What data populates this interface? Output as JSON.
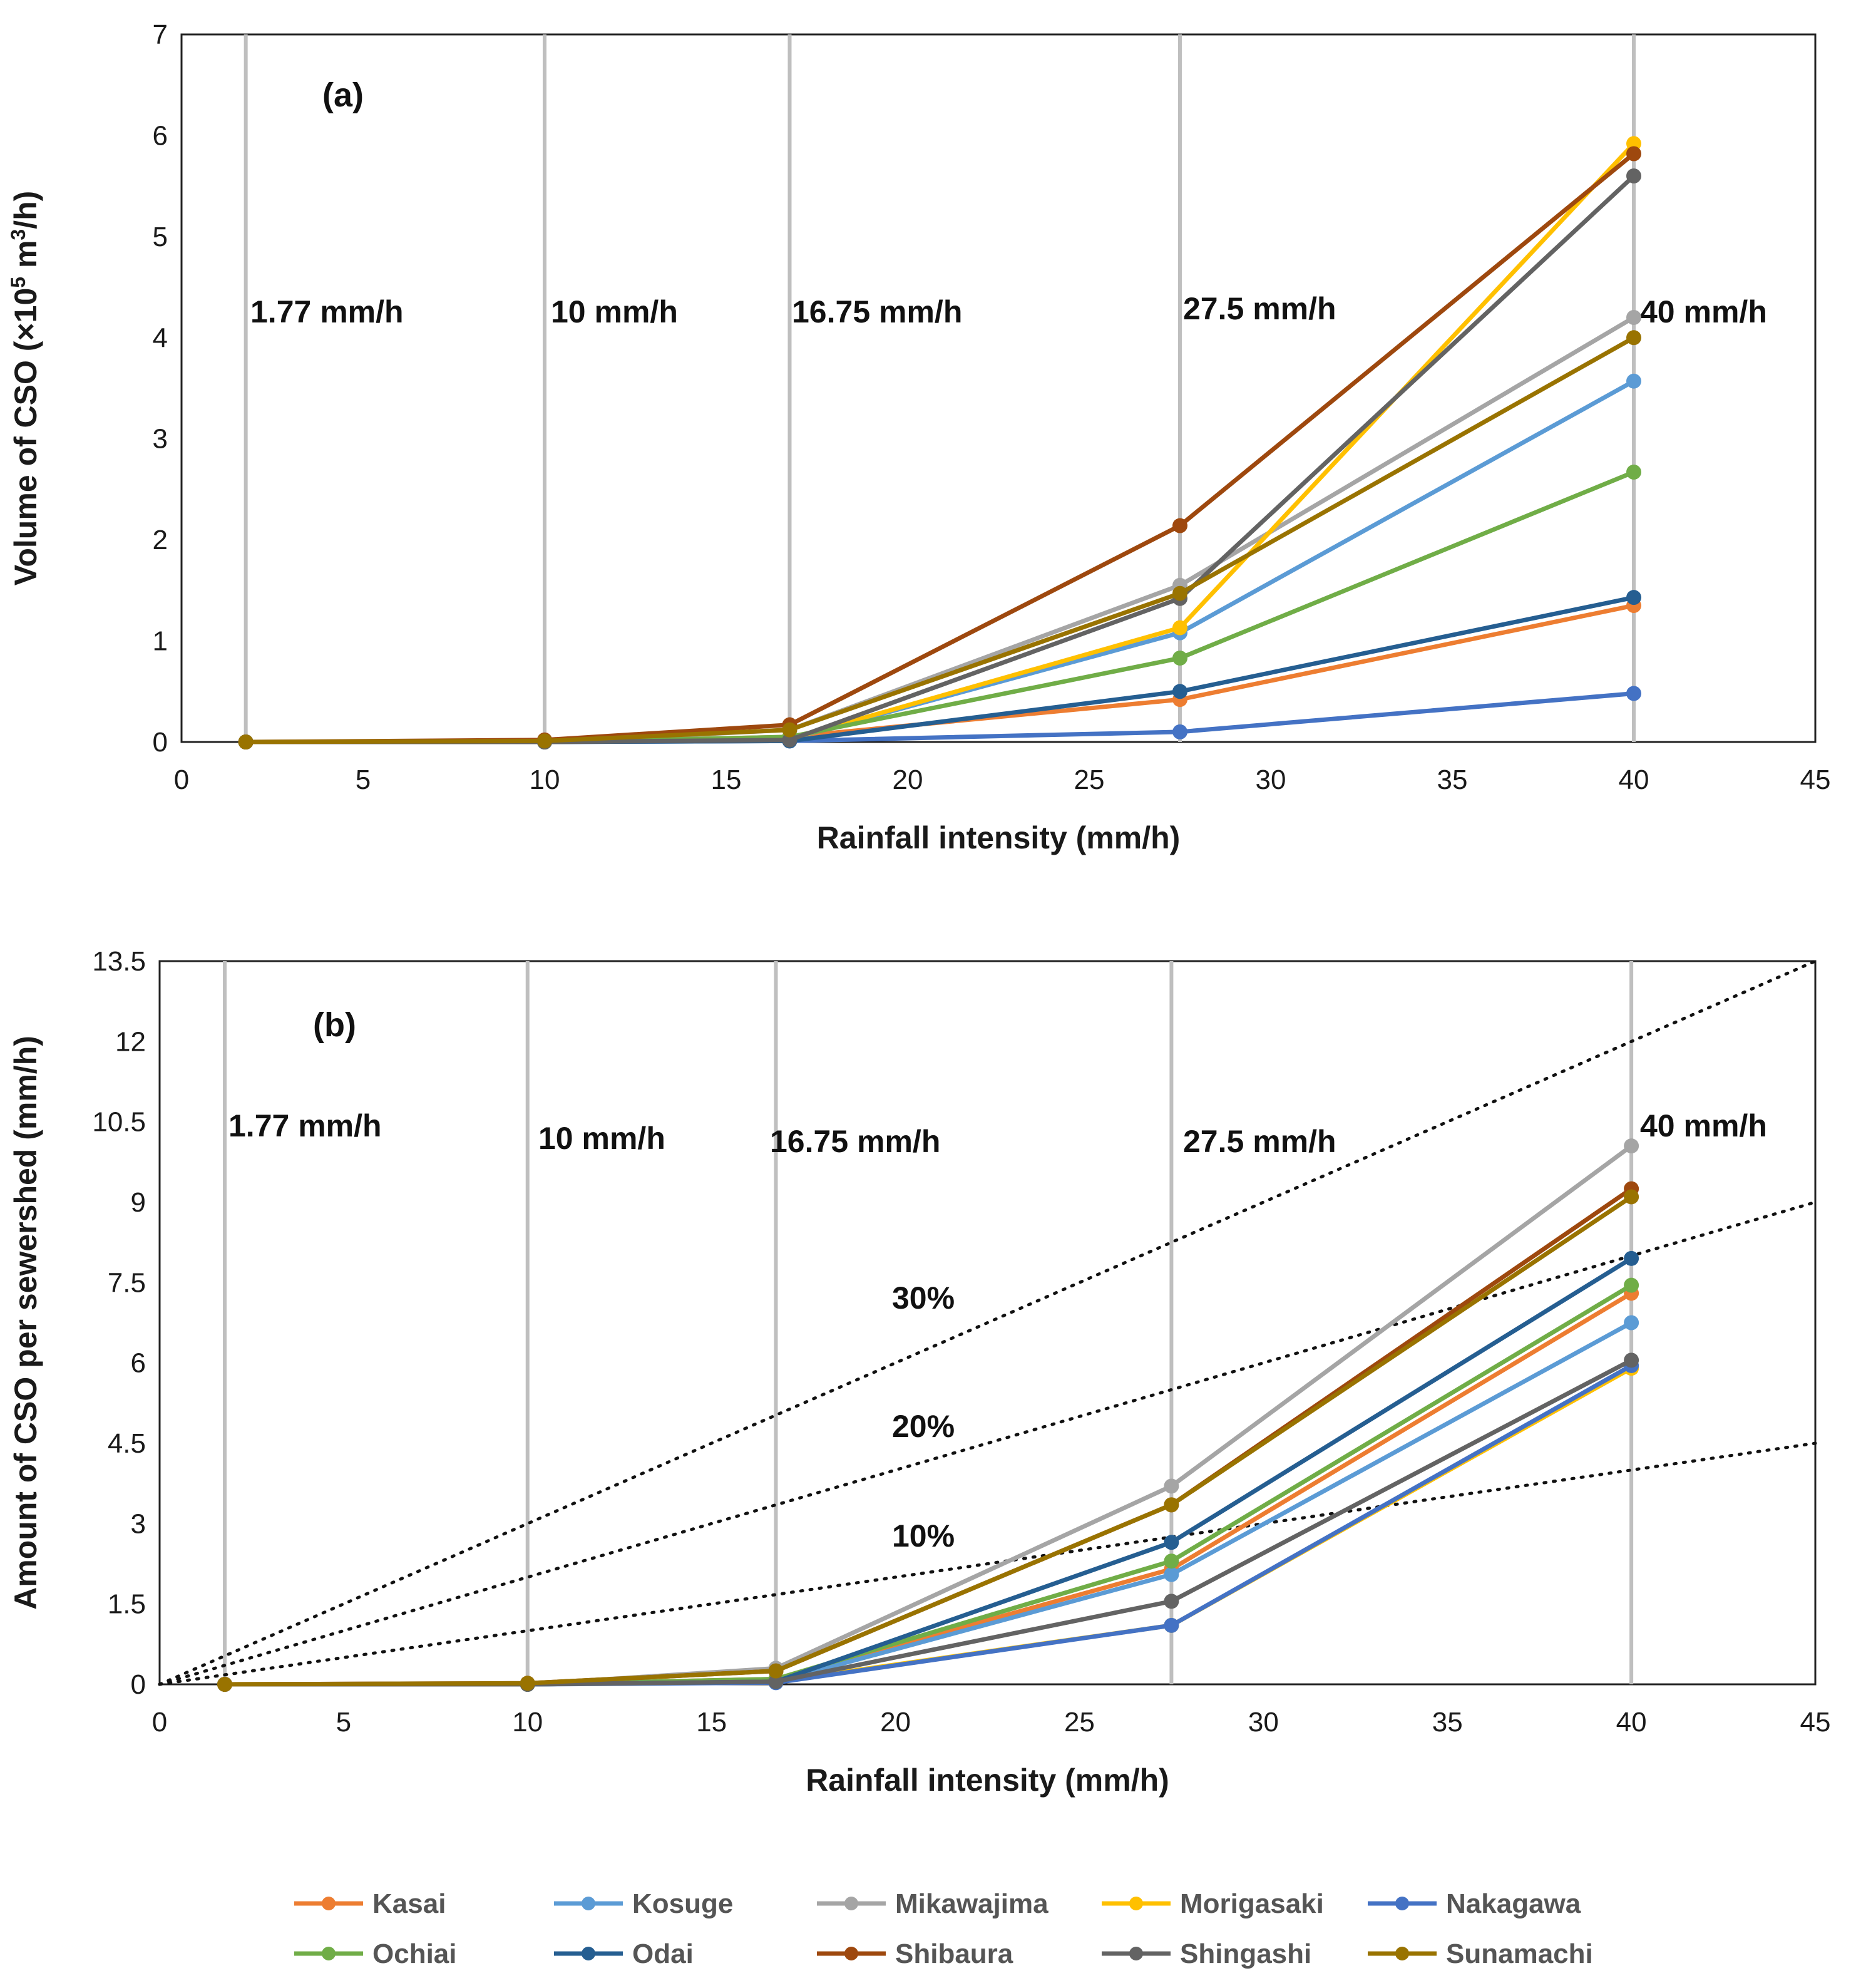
{
  "chart_data": [
    {
      "type": "line",
      "panel_label": "(a)",
      "xlabel": "Rainfall intensity (mm/h)",
      "ylabel_parts": [
        "Volume of CSO (×10",
        "5",
        " m",
        "3",
        "/h)"
      ],
      "xlim": [
        0,
        45
      ],
      "ylim": [
        0,
        7
      ],
      "xticks": [
        0,
        5,
        10,
        15,
        20,
        25,
        30,
        35,
        40,
        45
      ],
      "yticks": [
        0,
        1,
        2,
        3,
        4,
        5,
        6,
        7
      ],
      "x": [
        1.77,
        10,
        16.75,
        27.5,
        40
      ],
      "rain_lines": [
        1.77,
        10,
        16.75,
        27.5,
        40
      ],
      "rain_labels": [
        "1.77 mm/h",
        "10 mm/h",
        "16.75 mm/h",
        "27.5 mm/h",
        "40 mm/h"
      ],
      "series": [
        {
          "name": "Kasai",
          "color": "#ED7D31",
          "values": [
            0,
            0,
            0.05,
            0.42,
            1.35
          ]
        },
        {
          "name": "Kosuge",
          "color": "#5B9BD5",
          "values": [
            0,
            0,
            0.03,
            1.08,
            3.57
          ]
        },
        {
          "name": "Mikawajima",
          "color": "#A5A5A5",
          "values": [
            0,
            0,
            0.12,
            1.55,
            4.2
          ]
        },
        {
          "name": "Morigasaki",
          "color": "#FFC000",
          "values": [
            0,
            0,
            0.03,
            1.13,
            5.92
          ]
        },
        {
          "name": "Nakagawa",
          "color": "#4472C4",
          "values": [
            0,
            0,
            0.01,
            0.1,
            0.48
          ]
        },
        {
          "name": "Ochiai",
          "color": "#70AD47",
          "values": [
            0,
            0,
            0.05,
            0.83,
            2.67
          ]
        },
        {
          "name": "Odai",
          "color": "#255E91",
          "values": [
            0,
            0,
            0.01,
            0.5,
            1.43
          ]
        },
        {
          "name": "Shibaura",
          "color": "#9E480E",
          "values": [
            0,
            0.02,
            0.17,
            2.14,
            5.82
          ]
        },
        {
          "name": "Shingashi",
          "color": "#636363",
          "values": [
            0,
            0,
            0.02,
            1.42,
            5.6
          ]
        },
        {
          "name": "Sunamachi",
          "color": "#997300",
          "values": [
            0,
            0.01,
            0.12,
            1.47,
            4.0
          ]
        }
      ]
    },
    {
      "type": "line",
      "panel_label": "(b)",
      "xlabel": "Rainfall intensity (mm/h)",
      "ylabel": "Amount of CSO per sewershed (mm/h)",
      "xlim": [
        0,
        45
      ],
      "ylim": [
        0,
        13.5
      ],
      "xticks": [
        0,
        5,
        10,
        15,
        20,
        25,
        30,
        35,
        40,
        45
      ],
      "yticks": [
        0,
        1.5,
        3,
        4.5,
        6,
        7.5,
        9,
        10.5,
        12,
        13.5
      ],
      "x": [
        1.77,
        10,
        16.75,
        27.5,
        40
      ],
      "rain_lines": [
        1.77,
        10,
        16.75,
        27.5,
        40
      ],
      "rain_labels": [
        "1.77 mm/h",
        "10 mm/h",
        "16.75 mm/h",
        "27.5 mm/h",
        "40 mm/h"
      ],
      "reference_lines": [
        {
          "label": "10%",
          "ratio": 0.1
        },
        {
          "label": "20%",
          "ratio": 0.2
        },
        {
          "label": "30%",
          "ratio": 0.3
        }
      ],
      "series": [
        {
          "name": "Kasai",
          "color": "#ED7D31",
          "values": [
            0,
            0,
            0.1,
            2.15,
            7.3
          ]
        },
        {
          "name": "Kosuge",
          "color": "#5B9BD5",
          "values": [
            0,
            0,
            0.05,
            2.05,
            6.75
          ]
        },
        {
          "name": "Mikawajima",
          "color": "#A5A5A5",
          "values": [
            0,
            0,
            0.3,
            3.7,
            10.05
          ]
        },
        {
          "name": "Morigasaki",
          "color": "#FFC000",
          "values": [
            0,
            0,
            0.05,
            1.1,
            5.9
          ]
        },
        {
          "name": "Nakagawa",
          "color": "#4472C4",
          "values": [
            0,
            0,
            0.03,
            1.1,
            5.95
          ]
        },
        {
          "name": "Ochiai",
          "color": "#70AD47",
          "values": [
            0,
            0,
            0.1,
            2.3,
            7.45
          ]
        },
        {
          "name": "Odai",
          "color": "#255E91",
          "values": [
            0,
            0,
            0.05,
            2.65,
            7.95
          ]
        },
        {
          "name": "Shibaura",
          "color": "#9E480E",
          "values": [
            0,
            0.02,
            0.25,
            3.35,
            9.25
          ]
        },
        {
          "name": "Shingashi",
          "color": "#636363",
          "values": [
            0,
            0,
            0.05,
            1.55,
            6.05
          ]
        },
        {
          "name": "Sunamachi",
          "color": "#997300",
          "values": [
            0,
            0.02,
            0.25,
            3.35,
            9.1
          ]
        }
      ]
    }
  ],
  "legend": [
    {
      "name": "Kasai",
      "color": "#ED7D31"
    },
    {
      "name": "Kosuge",
      "color": "#5B9BD5"
    },
    {
      "name": "Mikawajima",
      "color": "#A5A5A5"
    },
    {
      "name": "Morigasaki",
      "color": "#FFC000"
    },
    {
      "name": "Nakagawa",
      "color": "#4472C4"
    },
    {
      "name": "Ochiai",
      "color": "#70AD47"
    },
    {
      "name": "Odai",
      "color": "#255E91"
    },
    {
      "name": "Shibaura",
      "color": "#9E480E"
    },
    {
      "name": "Shingashi",
      "color": "#636363"
    },
    {
      "name": "Sunamachi",
      "color": "#997300"
    }
  ]
}
